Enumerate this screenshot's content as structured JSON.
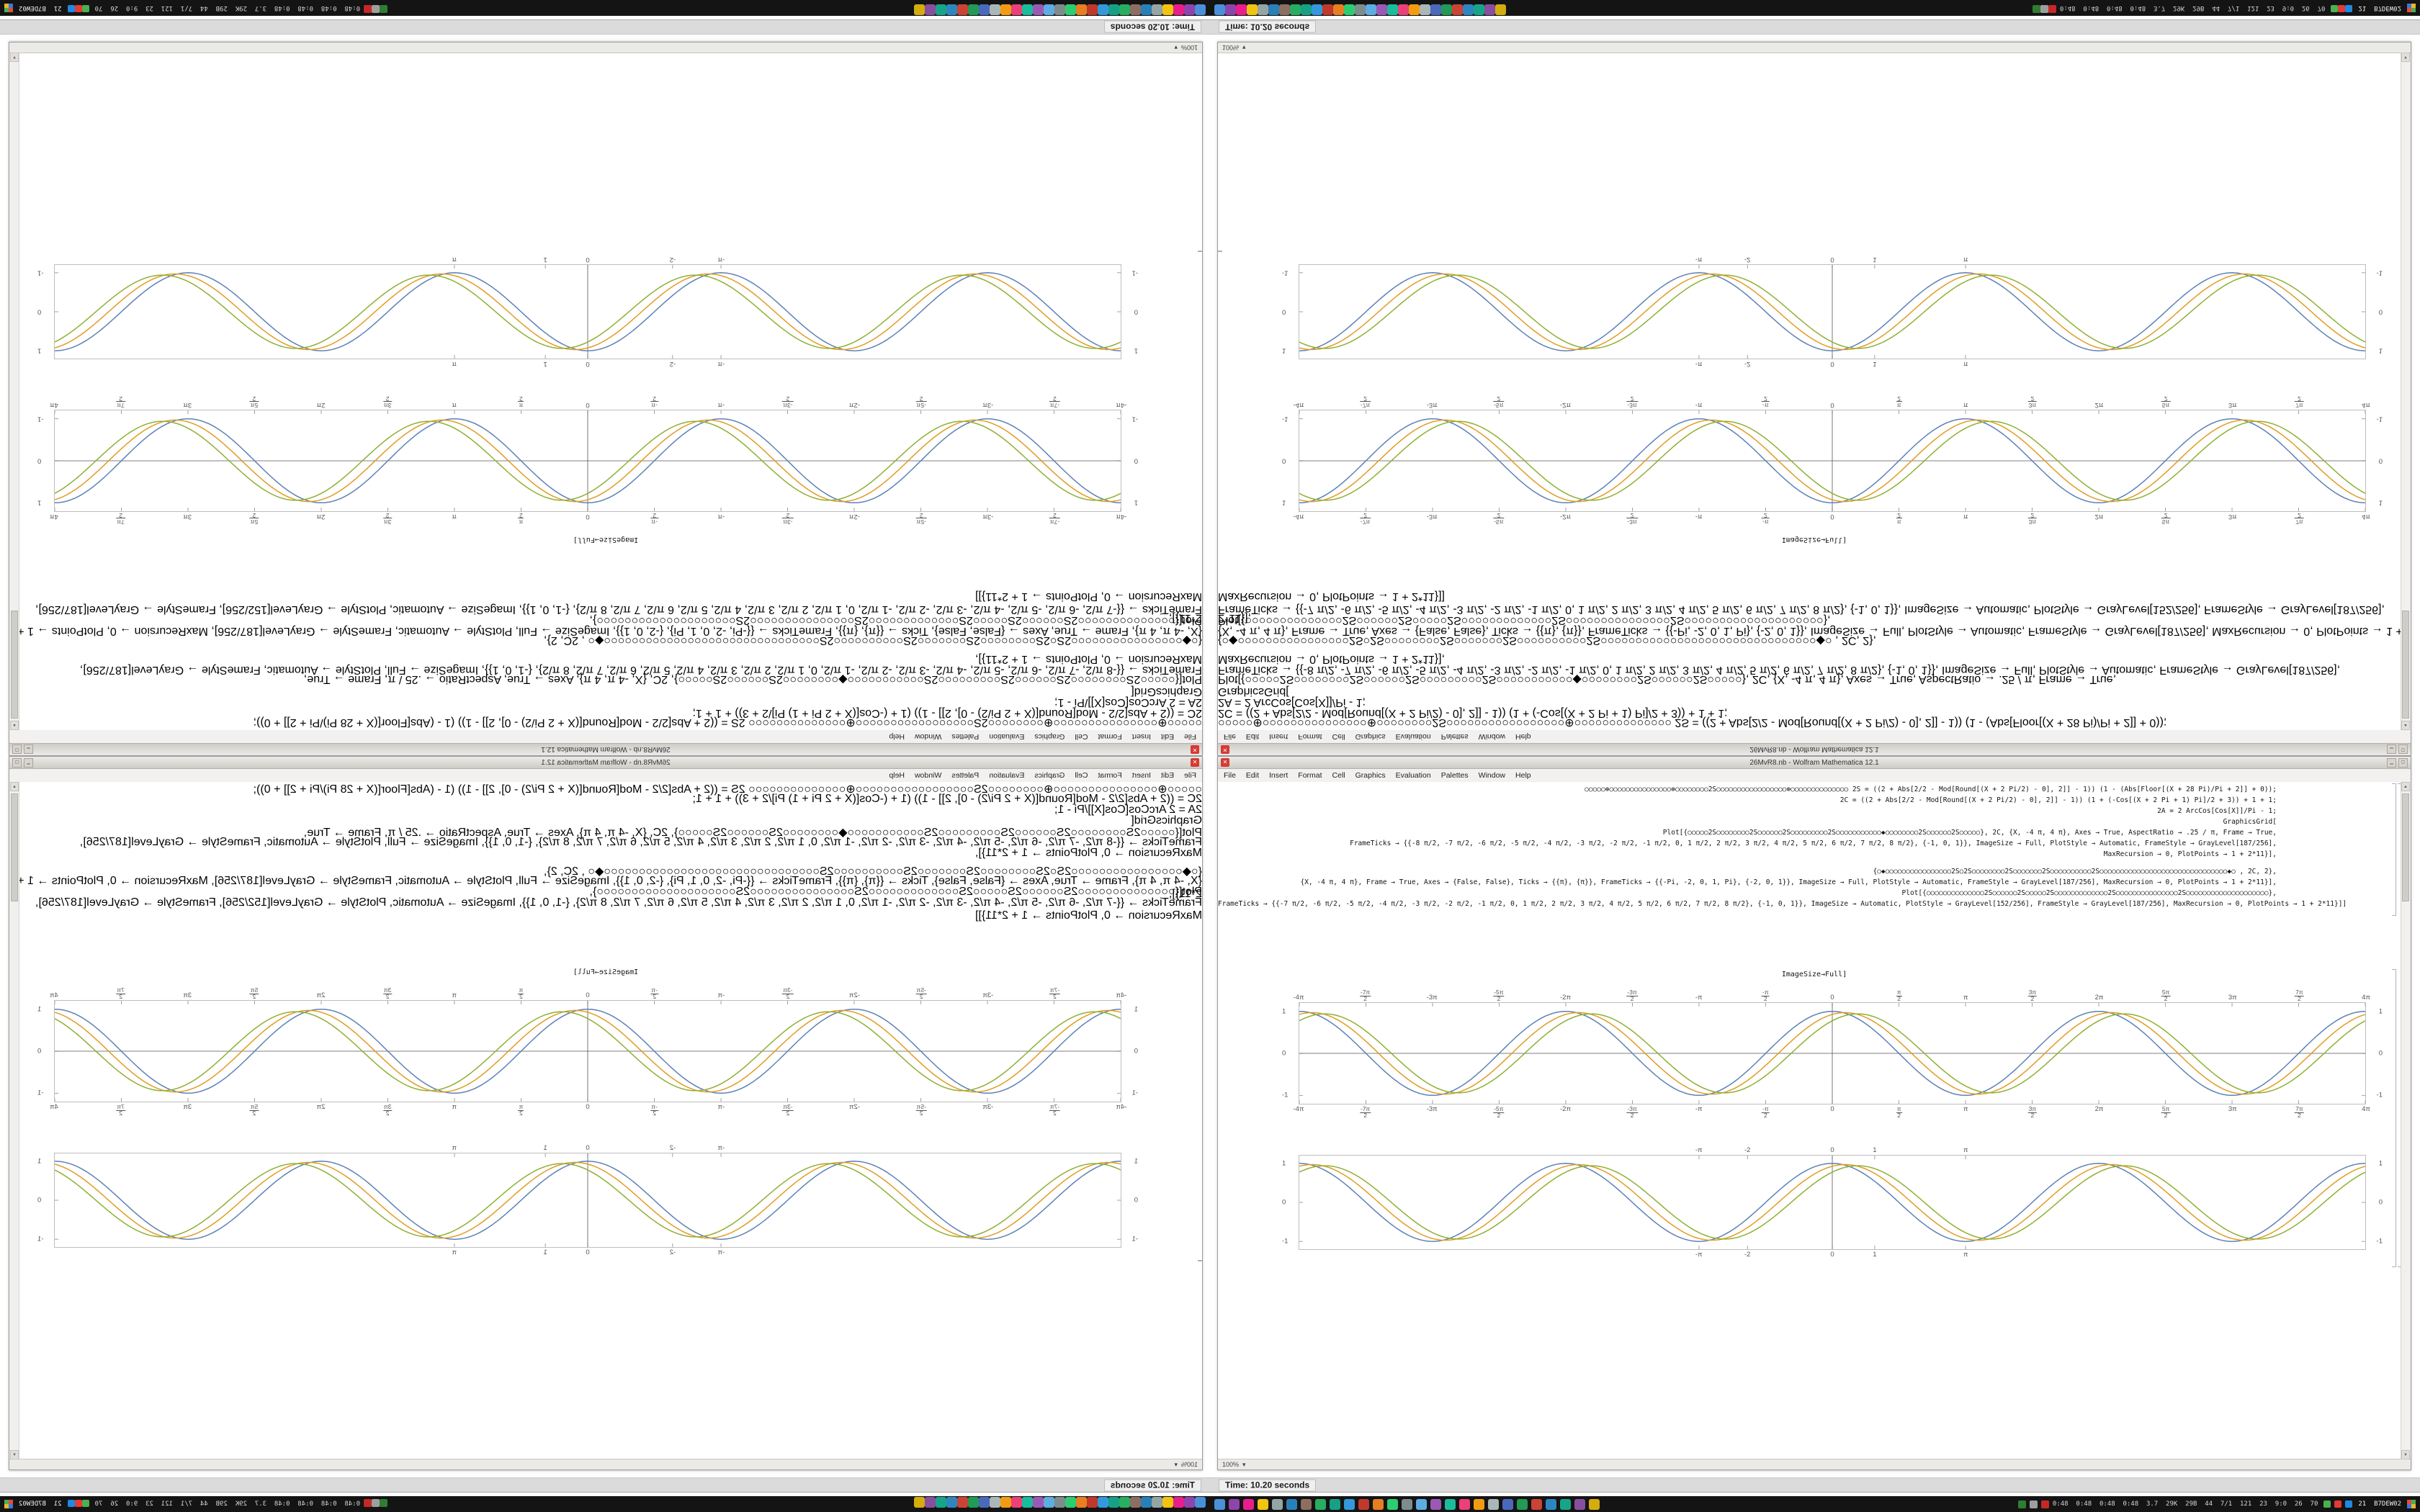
{
  "window": {
    "title": "26MvR8.nb - Wolfram Mathematica 12.1",
    "menu": [
      "File",
      "Edit",
      "Insert",
      "Format",
      "Cell",
      "Graphics",
      "Evaluation",
      "Palettes",
      "Window",
      "Help"
    ],
    "code_lines": [
      "○○○○○⊕○○○○○○○○○○○○○○○⊕○○○○○○○○2S○○○○○○○○○○○○○○○○○⊕○○○○○○○○○○○○○○   2S = ((2 + Abs[2/2 - Mod[Round[(X + 2 Pi/2) - 0], 2]] - 1)) (1 - (Abs[Floor[(X + 28 Pi)/Pi + 2]] + 0));",
      "2C = ((2 + Abs[2/2 - Mod[Round[(X + 2 Pi/2) - 0], 2]] - 1)) (1 + (-Cos[(X + 2 Pi + 1) Pi]/2 + 3)) + 1 + 1;",
      "2A = 2 ArcCos[Cos[X]]/Pi - 1;",
      "GraphicsGrid[",
      "Plot[{○○○○○2S○○○○○○○○2S○○○○○○2S○○○○○○○○○2S○○○○○○○○○○○◆○○○○○○○○2S○○○○○○2S○○○○○}, 2C, {X, -4 π, 4 π}, Axes → True, AspectRatio → .25 / π, Frame → True,",
      "FrameTicks → {{-8 π/2, -7 π/2, -6 π/2, -5 π/2, -4 π/2, -3 π/2, -2 π/2, -1 π/2, 0, 1 π/2, 2 π/2, 3 π/2, 4 π/2, 5 π/2, 6 π/2, 7 π/2, 8 π/2}, {-1, 0, 1}}, ImageSize → Full, PlotStyle → Automatic, FrameStyle → GrayLevel[187/256],",
      "MaxRecursion → 0, PlotPoints → 1 + 2*11}],",
      "",
      "{○◆○○○○○○○○○○○○○○○○2S○2S○○○○○○○○2S○○○○○○○2S○○○○○○○○○○2S○○○○○○○○○○○○○○○○○○○○○○○○○○○○○○○◆○ , 2C, 2},",
      "{X, -4 π, 4 π}, Frame → True, Axes → {False, False}, Ticks → {{π}, {π}}, FrameTicks → {{-Pi, -2, 0, 1, Pi}, {-2, 0, 1}}, ImageSize → Full, PlotStyle → Automatic, FrameStyle → GrayLevel[187/256], MaxRecursion → 0, PlotPoints → 1 + 2*11}],",
      "Plot[{○○○○○○○○○○○○○○2S○○○○○○2S○○○○○2S○○○○○○○○○○○○○2S○○○○○○○○○○○○○○○2S○○○○○○○○○○○○○○○○○○○○},",
      "FrameTicks → {{-7 π/2, -6 π/2, -5 π/2, -4 π/2, -3 π/2, -2 π/2, -1 π/2, 0, 1 π/2, 2 π/2, 3 π/2, 4 π/2, 5 π/2, 6 π/2, 7 π/2, 8 π/2}, {-1, 0, 1}}, ImageSize → Automatic, PlotStyle → GrayLevel[152/256], FrameStyle → GrayLevel[187/256], MaxRecursion → 0, PlotPoints → 1 + 2*11}]]"
    ],
    "output_label": "ImageSize→Full]",
    "zoom": "100%",
    "scroll_up_glyph": "▲",
    "scroll_down_glyph": "▼",
    "zoom_caret": "▾",
    "close_glyph": "✕",
    "min_glyph": "▁",
    "max_glyph": "▢"
  },
  "status": {
    "text": "Time: 10.20 seconds"
  },
  "taskbar": {
    "app_icons": [
      "#4a90d9",
      "#8e44ad",
      "#e91e8c",
      "#f1c40f",
      "#95a5a6",
      "#2980b9",
      "#8d6e63",
      "#27ae60",
      "#16a085",
      "#3498db",
      "#c0392b",
      "#e67e22",
      "#2ecc71",
      "#7f8c8d",
      "#5dade2",
      "#9b59b6",
      "#1abc9c",
      "#ec407a",
      "#f39c12",
      "#aab7b8",
      "#4a69bd",
      "#229954",
      "#cb4335",
      "#2e86c1",
      "#17a589",
      "#884ea0",
      "#d4ac0d"
    ],
    "mid_icons": [
      "#2e7d32",
      "#9e9e9e",
      "#c62828"
    ],
    "tray_icons": [
      "#4caf50",
      "#e53935",
      "#1e88e5"
    ],
    "tray_text": "0:48  0:48  0:48  0:48  3.7  29K  29B  44  7/1  121  23  9:0  26  70",
    "tray_right": "21  B7DEW02",
    "launcher": [
      "#e64a3c",
      "#4cae4c",
      "#3b78d8",
      "#f0b429"
    ]
  },
  "chart_data": [
    {
      "type": "line",
      "title": "",
      "xlabel": "",
      "ylabel": "",
      "x_range": [
        -12.566,
        12.566
      ],
      "ylim": [
        -1.2,
        1.2
      ],
      "frame": true,
      "grid": false,
      "legend": "none",
      "axes": {
        "x": true,
        "y": true
      },
      "x_ticks": [
        {
          "label": "-4π",
          "v": -12.566
        },
        {
          "label": "-7π/2",
          "v": -10.996
        },
        {
          "label": "-3π",
          "v": -9.425
        },
        {
          "label": "-5π/2",
          "v": -7.854
        },
        {
          "label": "-2π",
          "v": -6.283
        },
        {
          "label": "-3π/2",
          "v": -4.712
        },
        {
          "label": "-π",
          "v": -3.142
        },
        {
          "label": "-π/2",
          "v": -1.571
        },
        {
          "label": "0",
          "v": 0
        },
        {
          "label": "π/2",
          "v": 1.571
        },
        {
          "label": "π",
          "v": 3.142
        },
        {
          "label": "3π/2",
          "v": 4.712
        },
        {
          "label": "2π",
          "v": 6.283
        },
        {
          "label": "5π/2",
          "v": 7.854
        },
        {
          "label": "3π",
          "v": 9.425
        },
        {
          "label": "7π/2",
          "v": 10.996
        },
        {
          "label": "4π",
          "v": 12.566
        }
      ],
      "y_ticks": [
        {
          "label": "-1",
          "v": -1
        },
        {
          "label": "0",
          "v": 0
        },
        {
          "label": "1",
          "v": 1
        }
      ],
      "series": [
        {
          "name": "cos(x)",
          "color": "#5e81b5",
          "phase": 0,
          "amp": 1.0
        },
        {
          "name": "cos(x-0.3)",
          "color": "#e19c24",
          "phase": 0.3,
          "amp": 0.97
        },
        {
          "name": "cos(x-0.6)",
          "color": "#8fb032",
          "phase": 0.6,
          "amp": 0.94
        }
      ]
    },
    {
      "type": "line",
      "title": "",
      "xlabel": "",
      "ylabel": "",
      "x_range": [
        -12.566,
        12.566
      ],
      "ylim": [
        -1.2,
        1.2
      ],
      "frame": true,
      "grid": false,
      "legend": "none",
      "axes": {
        "x": false,
        "y": true
      },
      "x_ticks": [
        {
          "label": "-π",
          "v": -3.142
        },
        {
          "label": "-2",
          "v": -2
        },
        {
          "label": "0",
          "v": 0
        },
        {
          "label": "1",
          "v": 1
        },
        {
          "label": "π",
          "v": 3.142
        }
      ],
      "y_ticks": [
        {
          "label": "-1",
          "v": -1
        },
        {
          "label": "0",
          "v": 0
        },
        {
          "label": "1",
          "v": 1
        }
      ],
      "series": [
        {
          "name": "cos(x)",
          "color": "#5e81b5",
          "phase": 0,
          "amp": 1.0
        },
        {
          "name": "cos(x-0.3)",
          "color": "#e19c24",
          "phase": 0.3,
          "amp": 0.97
        },
        {
          "name": "cos(x-0.6)",
          "color": "#8fb032",
          "phase": 0.6,
          "amp": 0.94
        }
      ]
    }
  ]
}
